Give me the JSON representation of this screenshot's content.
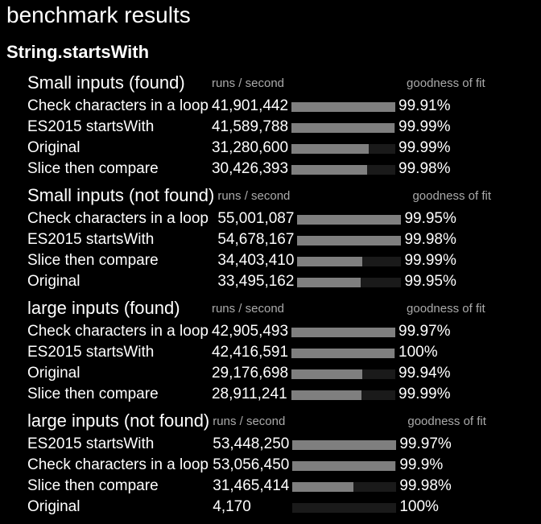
{
  "page_title": "benchmark results",
  "suite_title": "String.startsWith",
  "headers": {
    "runs": "runs / second",
    "fit": "goodness of fit"
  },
  "groups": [
    {
      "title": "Small inputs (found)",
      "rows": [
        {
          "name": "Check characters in a loop",
          "ops": "41,901,442",
          "fit": "99.91%",
          "relative": 1.0
        },
        {
          "name": "ES2015 startsWith",
          "ops": "41,589,788",
          "fit": "99.99%",
          "relative": 0.993
        },
        {
          "name": "Original",
          "ops": "31,280,600",
          "fit": "99.99%",
          "relative": 0.747
        },
        {
          "name": "Slice then compare",
          "ops": "30,426,393",
          "fit": "99.98%",
          "relative": 0.726
        }
      ]
    },
    {
      "title": "Small inputs (not found)",
      "rows": [
        {
          "name": "Check characters in a loop",
          "ops": "55,001,087",
          "fit": "99.95%",
          "relative": 1.0
        },
        {
          "name": "ES2015 startsWith",
          "ops": "54,678,167",
          "fit": "99.98%",
          "relative": 0.994
        },
        {
          "name": "Slice then compare",
          "ops": "34,403,410",
          "fit": "99.99%",
          "relative": 0.626
        },
        {
          "name": "Original",
          "ops": "33,495,162",
          "fit": "99.95%",
          "relative": 0.609
        }
      ]
    },
    {
      "title": "large inputs (found)",
      "rows": [
        {
          "name": "Check characters in a loop",
          "ops": "42,905,493",
          "fit": "99.97%",
          "relative": 1.0
        },
        {
          "name": "ES2015 startsWith",
          "ops": "42,416,591",
          "fit": "100%",
          "relative": 0.989
        },
        {
          "name": "Original",
          "ops": "29,176,698",
          "fit": "99.94%",
          "relative": 0.68
        },
        {
          "name": "Slice then compare",
          "ops": "28,911,241",
          "fit": "99.99%",
          "relative": 0.674
        }
      ]
    },
    {
      "title": "large inputs (not found)",
      "rows": [
        {
          "name": "ES2015 startsWith",
          "ops": "53,448,250",
          "fit": "99.97%",
          "relative": 1.0
        },
        {
          "name": "Check characters in a loop",
          "ops": "53,056,450",
          "fit": "99.9%",
          "relative": 0.993
        },
        {
          "name": "Slice then compare",
          "ops": "31,465,414",
          "fit": "99.98%",
          "relative": 0.589
        },
        {
          "name": "Original",
          "ops": "4,170",
          "fit": "100%",
          "relative": 0.0
        }
      ]
    }
  ],
  "colors": {
    "background": "#000000",
    "text": "#ffffff",
    "header_text": "#aaaaaa",
    "bar_fill": "#7f7f7f",
    "bar_track": "#1a1a1a"
  }
}
